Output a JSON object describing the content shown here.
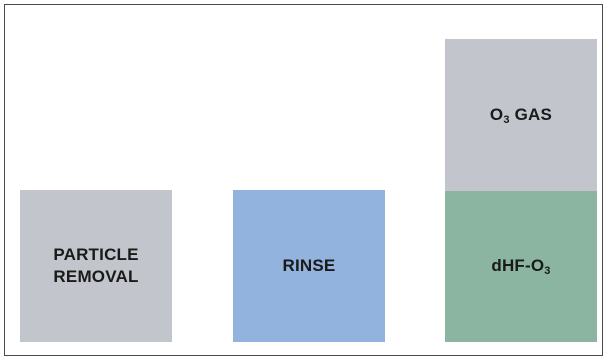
{
  "colors": {
    "gray_block": "#c2c5cb",
    "blue_block": "#93b3df",
    "green_block": "#8bb4a1",
    "frame_border": "#4a4a4a",
    "text": "#1a1a1a"
  },
  "blocks": {
    "particle_removal": {
      "line1": "PARTICLE",
      "line2": "REMOVAL"
    },
    "rinse": {
      "label": "RINSE"
    },
    "ozone_gas": {
      "prefix": "O",
      "subscript": "3",
      "suffix": " GAS"
    },
    "dhf_o3": {
      "prefix": "dHF-O",
      "subscript": "3"
    }
  }
}
